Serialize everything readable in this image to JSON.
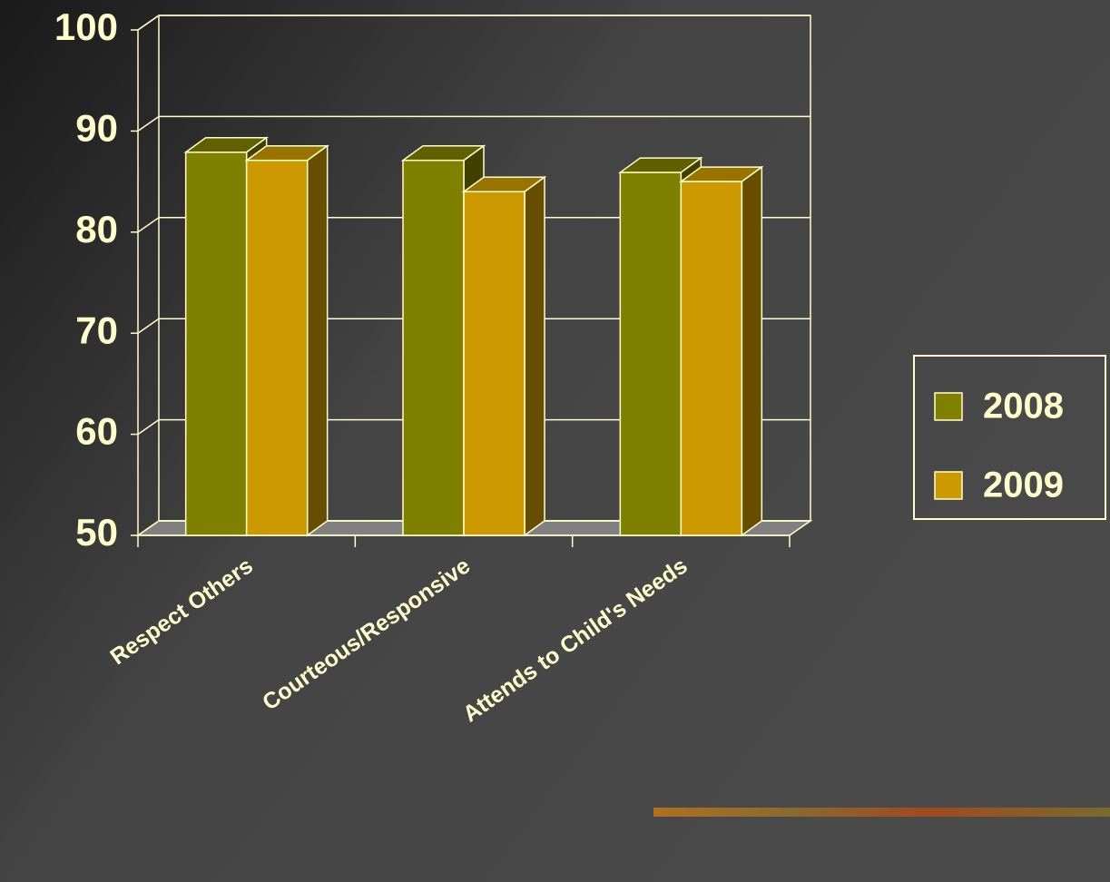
{
  "chart_data": {
    "type": "bar3d",
    "categories": [
      "Respect Others",
      "Courteous/Responsive",
      "Attends to Child's Needs"
    ],
    "series": [
      {
        "name": "2008",
        "color": "#808000",
        "values": [
          87.9,
          87.1,
          85.9
        ]
      },
      {
        "name": "2009",
        "color": "#cc9900",
        "values": [
          87.1,
          84.0,
          85.0
        ]
      }
    ],
    "ylim": [
      50,
      100
    ],
    "yticks": [
      50,
      60,
      70,
      80,
      90,
      100
    ],
    "grid": true,
    "legend": "right"
  }
}
